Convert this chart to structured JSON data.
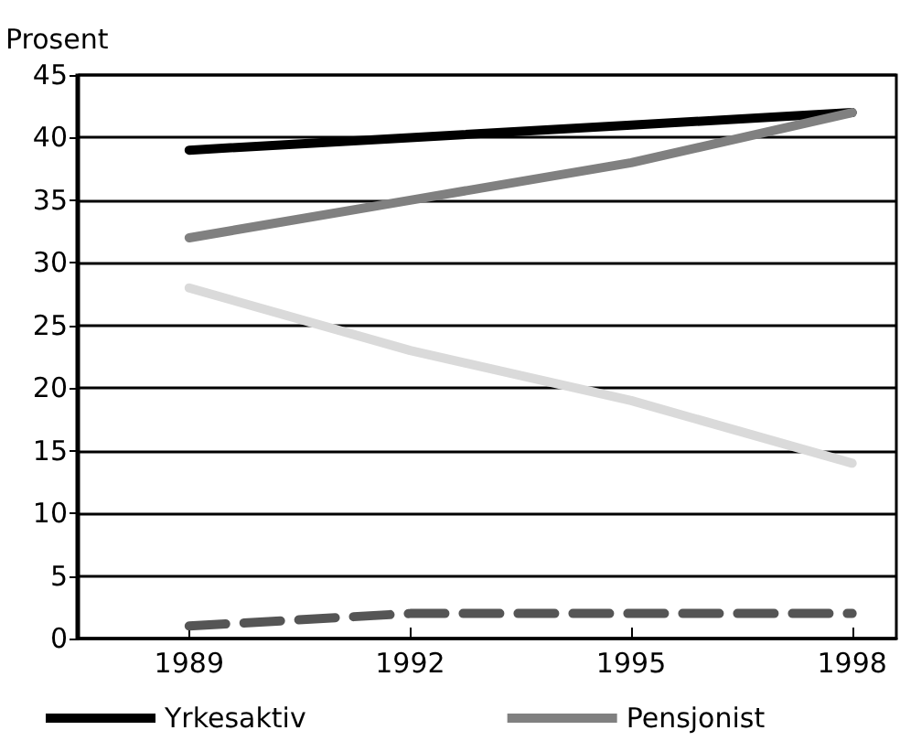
{
  "chart_data": {
    "type": "line",
    "ylabel": "Prosent",
    "x": [
      1989,
      1992,
      1995,
      1998
    ],
    "xlim": [
      1987.5,
      1998.6
    ],
    "xticks": [
      1989,
      1992,
      1995,
      1998
    ],
    "ylim": [
      0,
      45
    ],
    "yticks": [
      0,
      5,
      10,
      15,
      20,
      25,
      30,
      35,
      40,
      45
    ],
    "grid": "y",
    "legend": "bottom",
    "marker": "none",
    "series": [
      {
        "name": "Yrkesaktiv",
        "color": "#000000",
        "values": [
          39,
          40,
          41,
          42
        ]
      },
      {
        "name": "Pensjonist",
        "color": "#808080",
        "values": [
          32,
          35,
          38,
          42
        ]
      },
      {
        "color": "#dadada",
        "values": [
          28,
          23,
          19,
          14
        ]
      },
      {
        "color": "#555555",
        "values": [
          1,
          2,
          2,
          2
        ],
        "line_style": "dashed"
      }
    ]
  }
}
